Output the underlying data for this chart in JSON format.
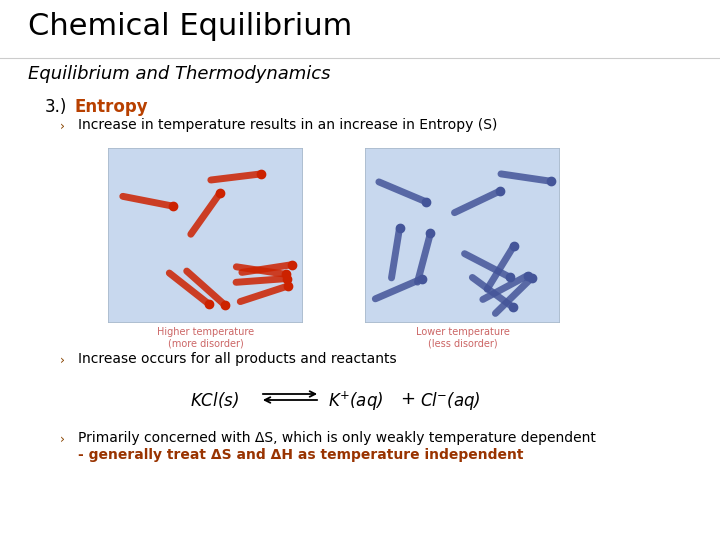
{
  "background_color": "#ffffff",
  "title": "Chemical Equilibrium",
  "title_fontsize": 22,
  "title_color": "#000000",
  "subtitle": "Equilibrium and Thermodynamics",
  "subtitle_fontsize": 13,
  "subtitle_color": "#000000",
  "section_label": "3.)",
  "section_label_color": "#000000",
  "section_label_fontsize": 12,
  "section_title": "Entropy",
  "section_title_color": "#b84000",
  "section_title_fontsize": 12,
  "bullet_marker": "›",
  "bullet_color": "#884400",
  "bullet_fontsize": 9,
  "bullet1": "Increase in temperature results in an increase in Entropy (S)",
  "bullet1_fontsize": 10,
  "bullet1_color": "#000000",
  "bullet2": "Increase occurs for all products and reactants",
  "bullet2_fontsize": 10,
  "bullet2_color": "#000000",
  "bullet3_line1": "Primarily concerned with ΔS, which is only weakly temperature dependent",
  "bullet3_line2": "- generally treat ΔS and ΔH as temperature independent",
  "bullet3_fontsize": 10,
  "bullet3_color": "#000000",
  "bullet3_line2_color": "#993300",
  "image_caption1": "Higher temperature\n(more disorder)",
  "image_caption2": "Lower temperature\n(less disorder)",
  "image_caption_color": "#cc6666",
  "image_caption_fontsize": 7,
  "box_facecolor": "#c8d8ee",
  "box_edgecolor": "#aabbcc",
  "rod_color_hot": "#cc2200",
  "rod_color_cold": "#445599",
  "equation_fontsize": 12,
  "equation_color": "#000000",
  "divider_color": "#cccccc"
}
